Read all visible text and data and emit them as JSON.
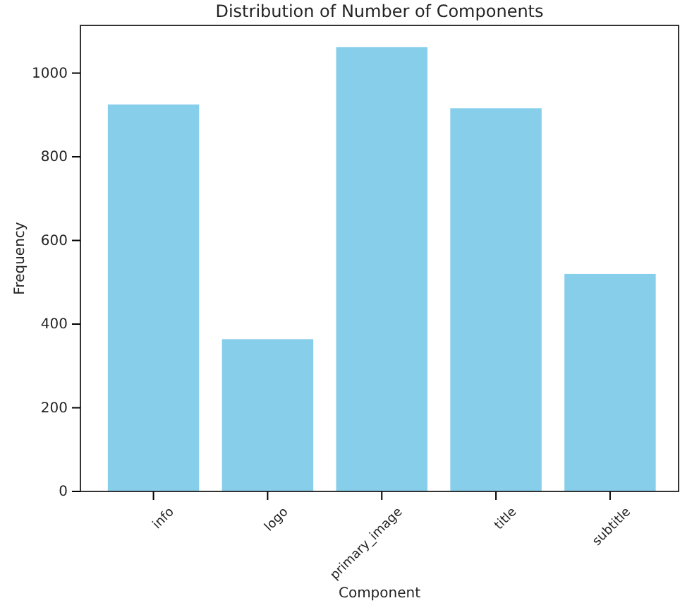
{
  "chart_data": {
    "type": "bar",
    "title": "Distribution of Number of Components",
    "xlabel": "Component",
    "ylabel": "Frequency",
    "categories": [
      "info",
      "logo",
      "primary_image",
      "title",
      "subtitle"
    ],
    "values": [
      925,
      364,
      1062,
      916,
      520
    ],
    "color": "#87ceeb",
    "ylim": [
      0,
      1114
    ],
    "yticks": [
      0,
      200,
      400,
      600,
      800,
      1000
    ],
    "grid": false
  }
}
